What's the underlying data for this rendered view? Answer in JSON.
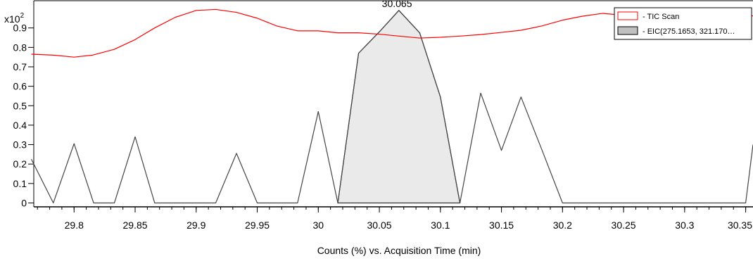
{
  "chart_data": {
    "type": "line",
    "yscale_label": "x10",
    "yscale_exponent": "2",
    "xlabel": "Counts (%) vs. Acquisition Time (min)",
    "xlim": [
      29.767,
      30.356
    ],
    "ylim": [
      -0.02,
      1.04
    ],
    "x_ticks": [
      "29.8",
      "29.85",
      "29.9",
      "29.95",
      "30",
      "30.05",
      "30.1",
      "30.15",
      "30.2",
      "30.25",
      "30.3",
      "30.35"
    ],
    "x_tick_values": [
      29.8,
      29.85,
      29.9,
      29.95,
      30,
      30.05,
      30.1,
      30.15,
      30.2,
      30.25,
      30.3,
      30.35
    ],
    "y_ticks": [
      "0",
      "0.1",
      "0.2",
      "0.3",
      "0.4",
      "0.5",
      "0.6",
      "0.7",
      "0.8",
      "0.9"
    ],
    "y_tick_values": [
      0,
      0.1,
      0.2,
      0.3,
      0.4,
      0.5,
      0.6,
      0.7,
      0.8,
      0.9
    ],
    "peak_annotation": {
      "label": "30.065",
      "x": 30.065,
      "y": 0.99
    },
    "series": [
      {
        "name": "- TIC Scan",
        "color": "#ff0000",
        "x": [
          29.765,
          29.783,
          29.8,
          29.815,
          29.833,
          29.85,
          29.866,
          29.883,
          29.9,
          29.916,
          29.933,
          29.95,
          29.966,
          29.983,
          30.0,
          30.016,
          30.033,
          30.05,
          30.066,
          30.083,
          30.1,
          30.116,
          30.133,
          30.15,
          30.166,
          30.183,
          30.2,
          30.216,
          30.233,
          30.25,
          30.266,
          30.283,
          30.3,
          30.316,
          30.333,
          30.356
        ],
        "values": [
          0.765,
          0.76,
          0.75,
          0.76,
          0.79,
          0.84,
          0.9,
          0.955,
          0.99,
          0.995,
          0.98,
          0.95,
          0.91,
          0.885,
          0.885,
          0.875,
          0.875,
          0.868,
          0.858,
          0.848,
          0.852,
          0.858,
          0.866,
          0.877,
          0.888,
          0.91,
          0.94,
          0.96,
          0.975,
          0.965,
          0.955,
          0.958,
          0.962,
          0.965,
          0.962,
          0.962
        ]
      },
      {
        "name": "- EIC(275.1653, 321.170…",
        "color": "#444444",
        "fill": "#eaeaea",
        "x": [
          29.765,
          29.783,
          29.8,
          29.816,
          29.833,
          29.85,
          29.866,
          29.883,
          29.9,
          29.916,
          29.933,
          29.95,
          29.966,
          29.983,
          30.0,
          30.016,
          30.033,
          30.05,
          30.066,
          30.083,
          30.1,
          30.116,
          30.133,
          30.15,
          30.166,
          30.183,
          30.2,
          30.216,
          30.233,
          30.25,
          30.266,
          30.283,
          30.3,
          30.316,
          30.333,
          30.35,
          30.356
        ],
        "values": [
          0.225,
          0.0,
          0.305,
          0.0,
          0.0,
          0.34,
          0.0,
          0.0,
          0.0,
          0.0,
          0.255,
          0.0,
          0.0,
          0.0,
          0.47,
          0.0,
          0.77,
          0.88,
          0.99,
          0.875,
          0.545,
          0.0,
          0.565,
          0.27,
          0.545,
          0.275,
          0.0,
          0.0,
          0.0,
          0.0,
          0.0,
          0.0,
          0.0,
          0.0,
          0.0,
          0.0,
          0.3
        ],
        "peak_fill_range": [
          30.016,
          30.116
        ]
      }
    ],
    "legend_position": "top-right"
  }
}
